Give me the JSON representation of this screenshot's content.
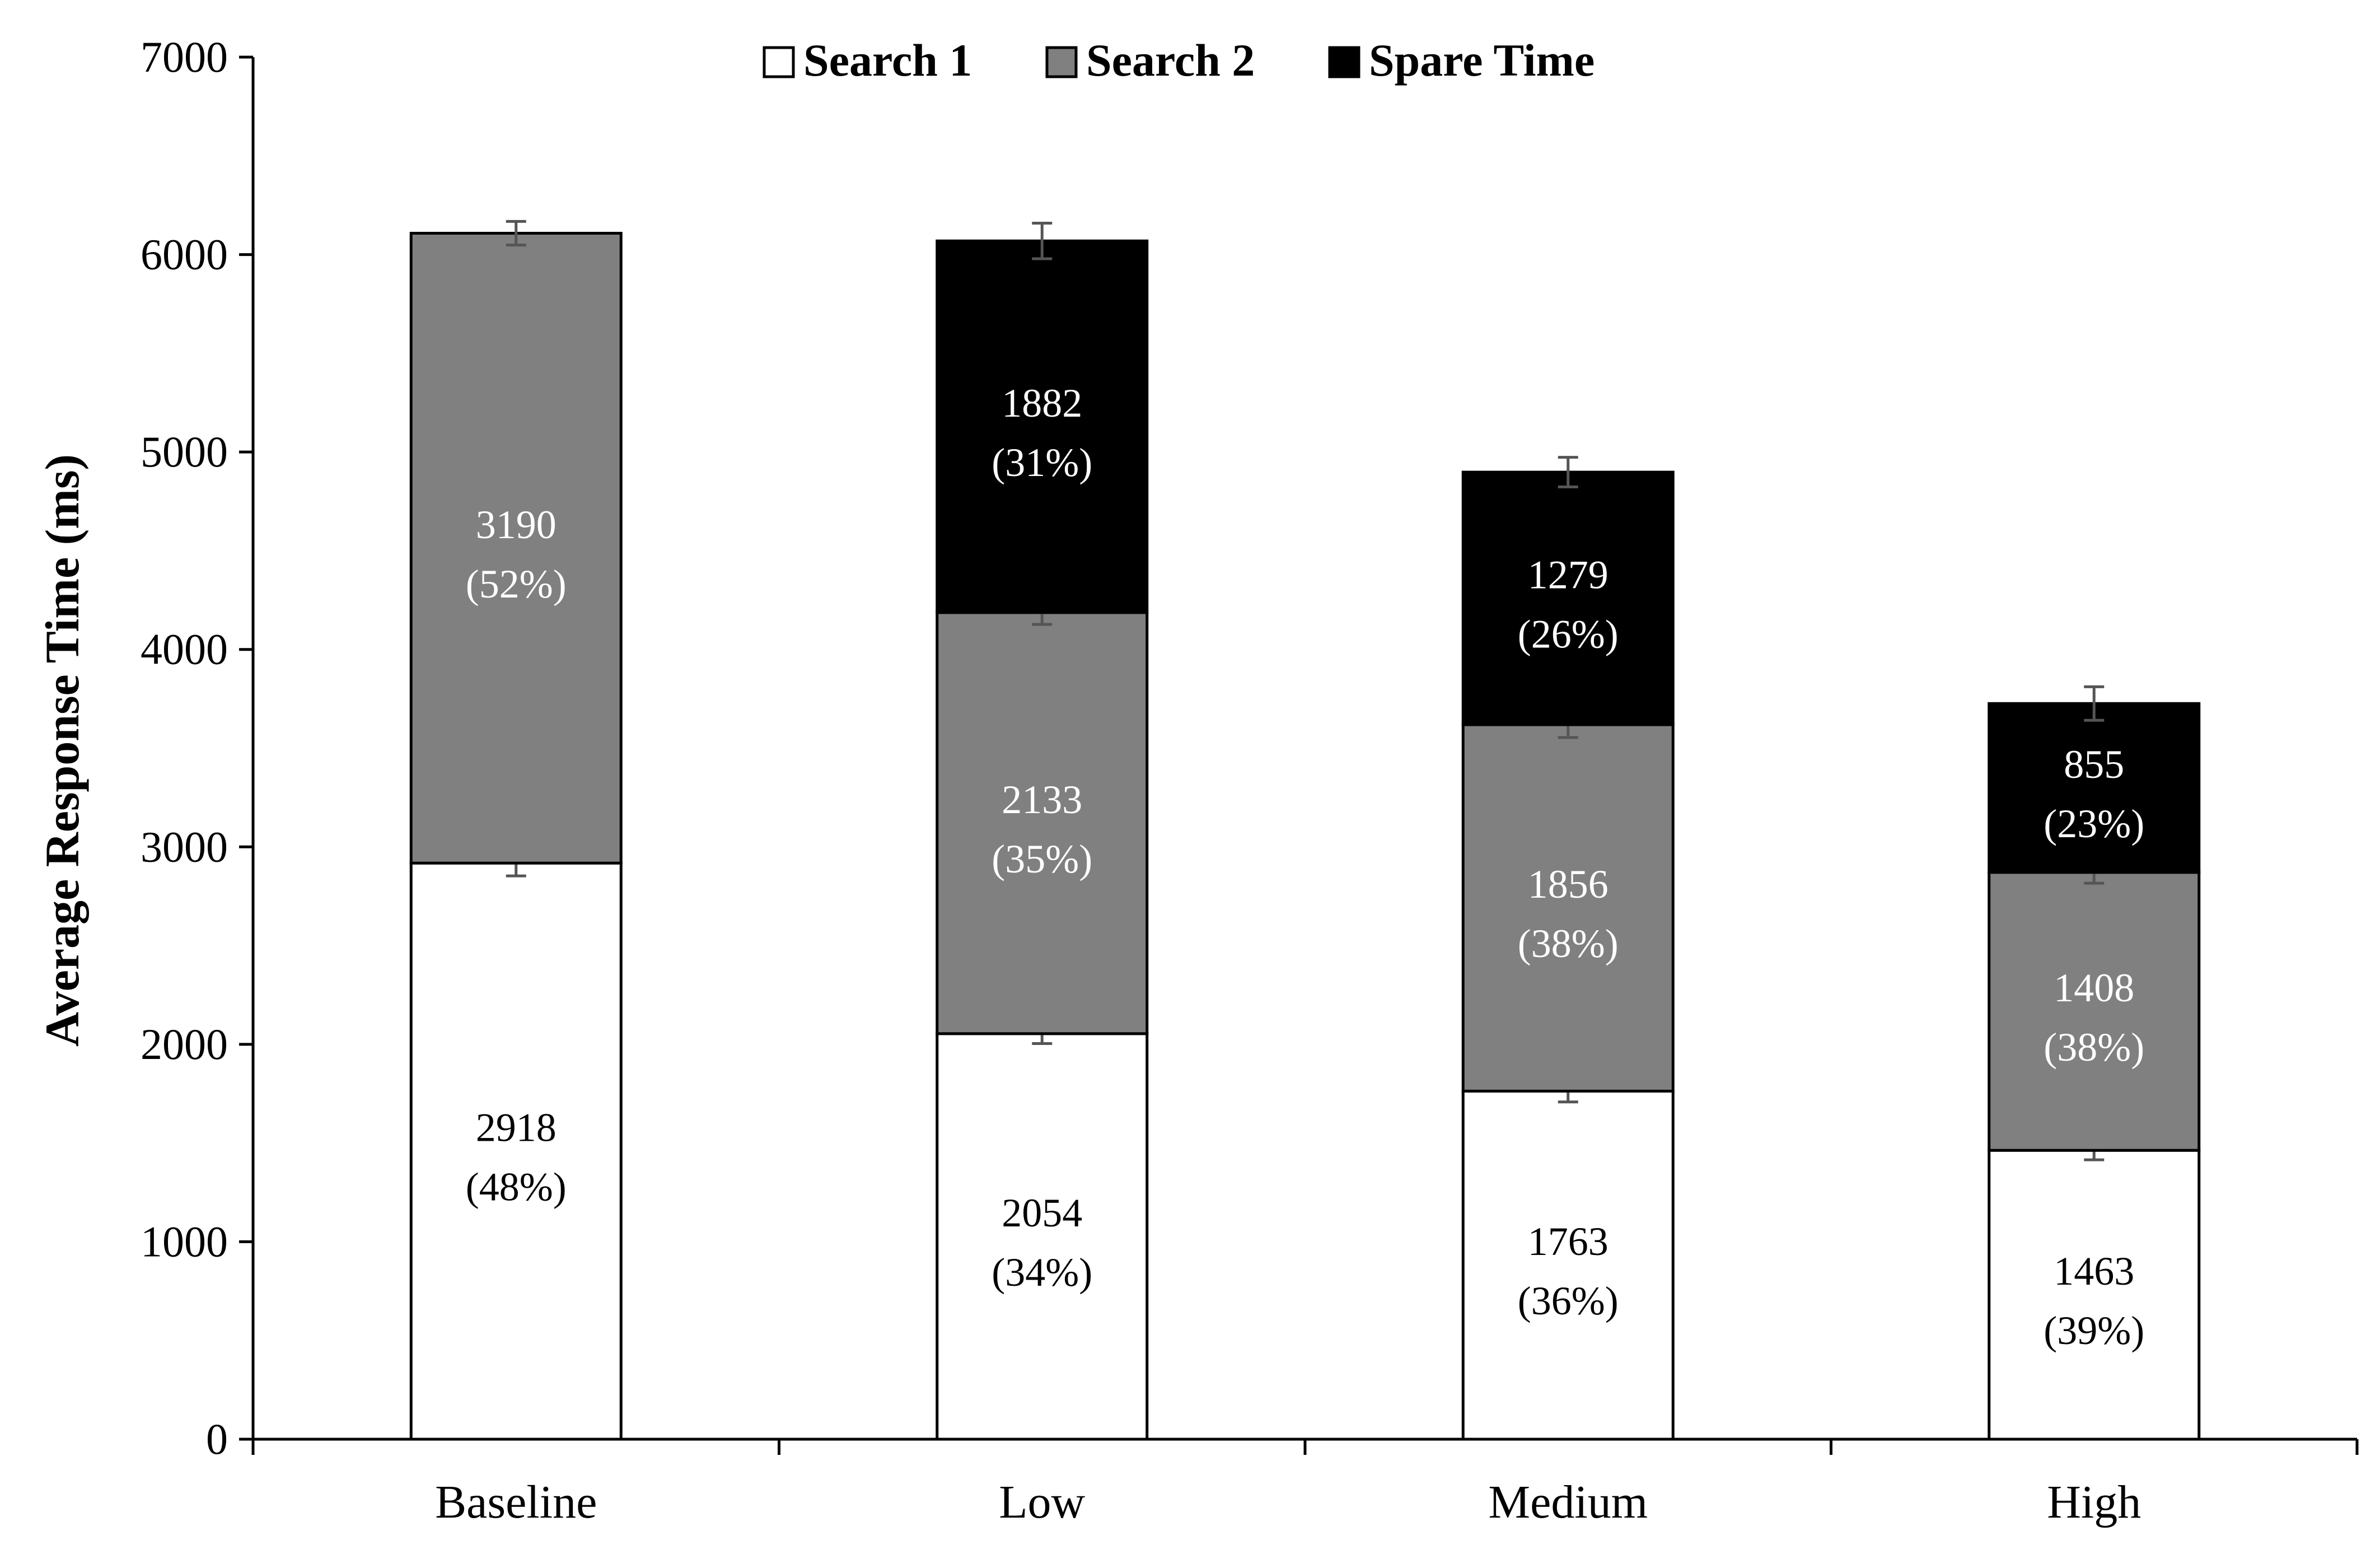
{
  "chart_data": {
    "type": "bar",
    "stacked": true,
    "title": "",
    "xlabel": "",
    "ylabel": "Average Response Time (ms)",
    "ylim": [
      0,
      7000
    ],
    "yticks": [
      0,
      1000,
      2000,
      3000,
      4000,
      5000,
      6000,
      7000
    ],
    "categories": [
      "Baseline",
      "Low",
      "Medium",
      "High"
    ],
    "legend_position": "top-center",
    "grid": false,
    "series": [
      {
        "name": "Search 1",
        "color": "#ffffff",
        "label_color": "#000000",
        "values": [
          2918,
          2054,
          1763,
          1463
        ],
        "percent_labels": [
          "(48%)",
          "(34%)",
          "(36%)",
          "(39%)"
        ],
        "error": [
          65,
          50,
          55,
          48
        ]
      },
      {
        "name": "Search 2",
        "color": "#808080",
        "label_color": "#ffffff",
        "values": [
          3190,
          2133,
          1856,
          1408
        ],
        "percent_labels": [
          "(52%)",
          "(35%)",
          "(38%)",
          "(38%)"
        ],
        "error": [
          60,
          60,
          65,
          55
        ]
      },
      {
        "name": "Spare Time",
        "color": "#000000",
        "label_color": "#ffffff",
        "values": [
          0,
          1882,
          1279,
          855
        ],
        "percent_labels": [
          "",
          "(31%)",
          "(26%)",
          "(23%)"
        ],
        "error": [
          0,
          90,
          75,
          85
        ]
      }
    ]
  }
}
